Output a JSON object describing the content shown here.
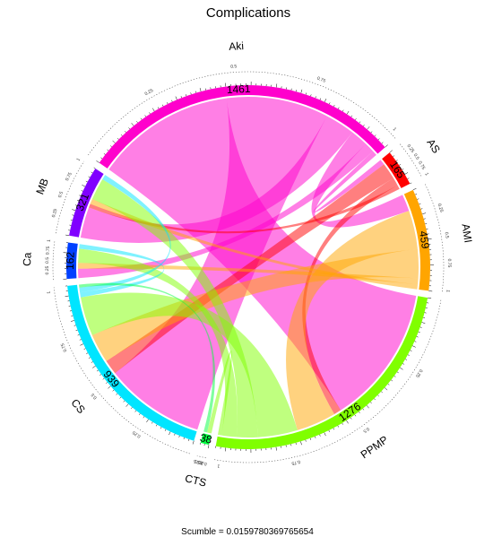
{
  "chart_data": {
    "type": "chord",
    "title": "Complications",
    "caption": "Scumble = 0.0159780369765654",
    "sectors": [
      {
        "name": "Aki",
        "total": "1461",
        "color": "#ff00cc"
      },
      {
        "name": "AS",
        "total": "165",
        "color": "#ff0000"
      },
      {
        "name": "AMI",
        "total": "459",
        "color": "#ffa500"
      },
      {
        "name": "PPMP",
        "total": "1276",
        "color": "#80ff00"
      },
      {
        "name": "CTS",
        "total": "38",
        "color": "#00ff40"
      },
      {
        "name": "CS",
        "total": "939",
        "color": "#00e5ff"
      },
      {
        "name": "Ca",
        "total": "162",
        "color": "#0040ff"
      },
      {
        "name": "MB",
        "total": "321",
        "color": "#8000ff"
      }
    ],
    "scale_labels": [
      "0.25",
      "0.5",
      "0.75",
      "1"
    ],
    "links": [
      {
        "from": "Aki",
        "to": "PPMP",
        "value": 560
      },
      {
        "from": "Aki",
        "to": "CS",
        "value": 410
      },
      {
        "from": "Aki",
        "to": "MB",
        "value": 120
      },
      {
        "from": "Aki",
        "to": "AMI",
        "value": 70
      },
      {
        "from": "Aki",
        "to": "Ca",
        "value": 40
      },
      {
        "from": "Aki",
        "to": "AS",
        "value": 20
      },
      {
        "from": "AS",
        "to": "CS",
        "value": 60
      },
      {
        "from": "AS",
        "to": "PPMP",
        "value": 30
      },
      {
        "from": "AS",
        "to": "MB",
        "value": 15
      },
      {
        "from": "AMI",
        "to": "PPMP",
        "value": 160
      },
      {
        "from": "AMI",
        "to": "CS",
        "value": 120
      },
      {
        "from": "AMI",
        "to": "Ca",
        "value": 25
      },
      {
        "from": "AMI",
        "to": "MB",
        "value": 20
      },
      {
        "from": "PPMP",
        "to": "CS",
        "value": 160
      },
      {
        "from": "PPMP",
        "to": "MB",
        "value": 85
      },
      {
        "from": "PPMP",
        "to": "Ca",
        "value": 60
      },
      {
        "from": "PPMP",
        "to": "CTS",
        "value": 15
      },
      {
        "from": "CS",
        "to": "Ca",
        "value": 20
      },
      {
        "from": "CS",
        "to": "MB",
        "value": 20
      },
      {
        "from": "CTS",
        "to": "CS",
        "value": 12
      }
    ]
  }
}
